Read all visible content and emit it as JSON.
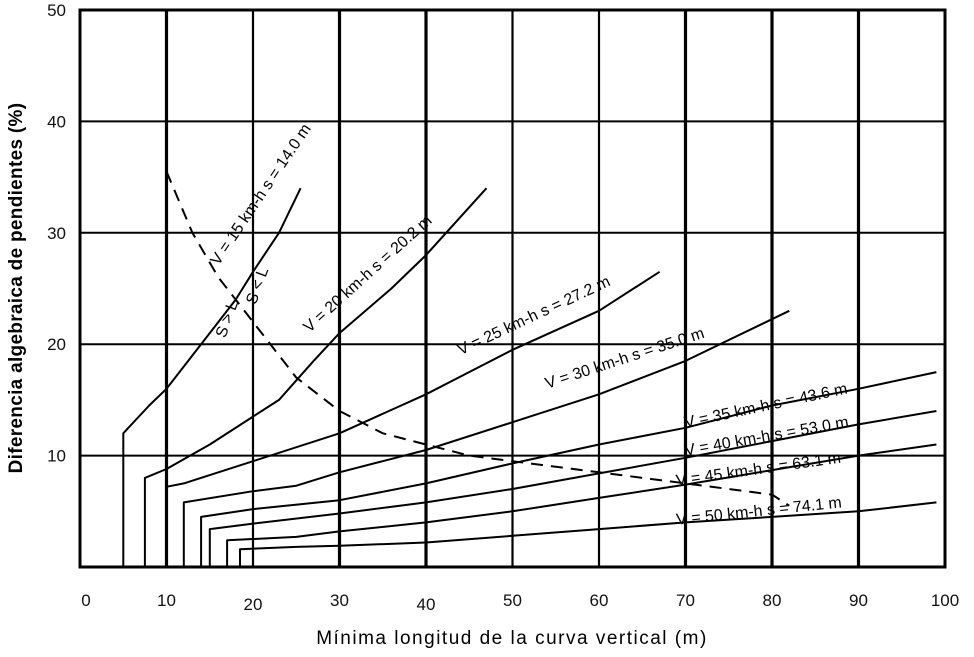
{
  "chart_data": {
    "type": "line",
    "title": "",
    "xlabel": "Mínima longitud de la curva vertical (m)",
    "ylabel": "Diferencia algebraica de pendientes (%)",
    "xlim": [
      0,
      100
    ],
    "ylim": [
      0,
      50
    ],
    "x_ticks": [
      0,
      10,
      20,
      30,
      40,
      50,
      60,
      70,
      80,
      90,
      100
    ],
    "y_ticks": [
      10,
      20,
      30,
      40,
      50
    ],
    "grid": true,
    "legend": "none (inline curve labels)",
    "series": [
      {
        "name": "V = 15 km-h  s = 14.0 m",
        "speed_kmh": 15,
        "sight_distance_m": 14.0,
        "points": [
          [
            5,
            0
          ],
          [
            5,
            12
          ],
          [
            8,
            14.5
          ],
          [
            10,
            16
          ],
          [
            14,
            20
          ],
          [
            18,
            24
          ],
          [
            20,
            26.5
          ],
          [
            23,
            30
          ],
          [
            25.5,
            34
          ]
        ]
      },
      {
        "name": "V = 20 km-h  s = 20.2 m",
        "speed_kmh": 20,
        "sight_distance_m": 20.2,
        "points": [
          [
            7.5,
            0
          ],
          [
            7.5,
            8
          ],
          [
            10,
            8.8
          ],
          [
            15,
            11
          ],
          [
            20,
            13.5
          ],
          [
            23,
            15
          ],
          [
            27,
            18.5
          ],
          [
            30,
            21
          ],
          [
            36,
            25
          ],
          [
            40,
            28
          ],
          [
            47,
            34
          ]
        ]
      },
      {
        "name": "V = 25 km-h  s = 27.2 m",
        "speed_kmh": 25,
        "sight_distance_m": 27.2,
        "points": [
          [
            10,
            0
          ],
          [
            10,
            7.2
          ],
          [
            12,
            7.5
          ],
          [
            20,
            9.5
          ],
          [
            30,
            12
          ],
          [
            40,
            15.5
          ],
          [
            50,
            19.5
          ],
          [
            60,
            23
          ],
          [
            67,
            26.5
          ]
        ]
      },
      {
        "name": "V = 30 km-h  s = 35.0 m",
        "speed_kmh": 30,
        "sight_distance_m": 35.0,
        "points": [
          [
            12,
            0
          ],
          [
            12,
            5.8
          ],
          [
            20,
            6.8
          ],
          [
            25,
            7.3
          ],
          [
            30,
            8.5
          ],
          [
            40,
            10.5
          ],
          [
            50,
            13
          ],
          [
            60,
            15.5
          ],
          [
            70,
            18.5
          ],
          [
            82,
            23
          ]
        ]
      },
      {
        "name": "V = 35 km-h  s = 43.6 m",
        "speed_kmh": 35,
        "sight_distance_m": 43.6,
        "points": [
          [
            14,
            0
          ],
          [
            14,
            4.5
          ],
          [
            20,
            5.2
          ],
          [
            30,
            6
          ],
          [
            40,
            7.5
          ],
          [
            50,
            9.3
          ],
          [
            60,
            11
          ],
          [
            70,
            12.5
          ],
          [
            80,
            14.5
          ],
          [
            90,
            16
          ],
          [
            99,
            17.5
          ]
        ]
      },
      {
        "name": "V = 40 km-h  s = 53.0 m",
        "speed_kmh": 40,
        "sight_distance_m": 53.0,
        "points": [
          [
            15,
            0
          ],
          [
            15,
            3.4
          ],
          [
            20,
            3.9
          ],
          [
            30,
            4.8
          ],
          [
            40,
            5.8
          ],
          [
            50,
            7
          ],
          [
            60,
            8.4
          ],
          [
            70,
            9.8
          ],
          [
            80,
            11.3
          ],
          [
            90,
            12.8
          ],
          [
            99,
            14
          ]
        ]
      },
      {
        "name": "V = 45 km-h  s = 63.1 m",
        "speed_kmh": 45,
        "sight_distance_m": 63.1,
        "points": [
          [
            17,
            0
          ],
          [
            17,
            2.4
          ],
          [
            25,
            2.7
          ],
          [
            30,
            3.2
          ],
          [
            40,
            4
          ],
          [
            50,
            5
          ],
          [
            60,
            6.2
          ],
          [
            70,
            7.4
          ],
          [
            80,
            8.7
          ],
          [
            90,
            10
          ],
          [
            99,
            11
          ]
        ]
      },
      {
        "name": "V = 50 km-h  s = 74.1 m",
        "speed_kmh": 50,
        "sight_distance_m": 74.1,
        "points": [
          [
            18.5,
            0
          ],
          [
            18.5,
            1.6
          ],
          [
            25,
            1.8
          ],
          [
            30,
            1.9
          ],
          [
            40,
            2.2
          ],
          [
            50,
            2.8
          ],
          [
            60,
            3.4
          ],
          [
            70,
            4
          ],
          [
            80,
            4.5
          ],
          [
            90,
            5
          ],
          [
            99,
            5.8
          ]
        ]
      },
      {
        "name": "S = L boundary (dashed)",
        "dashed": true,
        "points": [
          [
            10,
            35.5
          ],
          [
            13,
            30
          ],
          [
            16,
            26
          ],
          [
            20,
            22
          ],
          [
            25,
            17
          ],
          [
            30,
            14
          ],
          [
            35,
            12
          ],
          [
            40,
            11
          ],
          [
            45,
            10
          ],
          [
            50,
            9.5
          ],
          [
            60,
            8.5
          ],
          [
            70,
            7.5
          ],
          [
            80,
            6.5
          ],
          [
            82,
            5.5
          ]
        ]
      }
    ],
    "annotations": [
      {
        "text": "V = 15 km-h   s = 14.0 m",
        "x": 16,
        "y": 27,
        "angle": -56
      },
      {
        "text": "V = 20 km-h   s = 20.2 m",
        "x": 26.5,
        "y": 21,
        "angle": -42
      },
      {
        "text": "V = 25 km-h   s = 27.2 m",
        "x": 44,
        "y": 19,
        "angle": -25
      },
      {
        "text": "V = 30 km-h   s = 35.0 m",
        "x": 54,
        "y": 16,
        "angle": -18
      },
      {
        "text": "V = 35 km-h   s = 43.6 m",
        "x": 70,
        "y": 12.5,
        "angle": -12
      },
      {
        "text": "V = 40 km-h   s = 53.0 m",
        "x": 70,
        "y": 10,
        "angle": -10
      },
      {
        "text": "V = 45 km-h   s = 63.1 m",
        "x": 69,
        "y": 7.3,
        "angle": -8
      },
      {
        "text": "V = 50 km-h   s = 74.1 m",
        "x": 69,
        "y": 3.8,
        "angle": -6
      },
      {
        "text": "S < L",
        "x": 20.3,
        "y": 23.5,
        "angle": -70
      },
      {
        "text": "S > L",
        "x": 16.8,
        "y": 20.5,
        "angle": -70
      }
    ]
  }
}
